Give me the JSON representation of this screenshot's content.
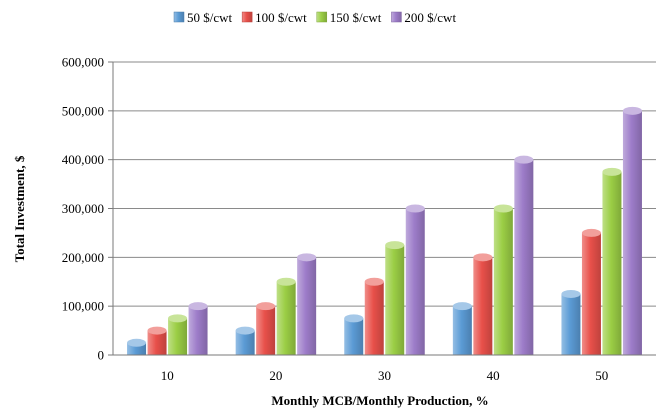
{
  "chart_data": {
    "type": "bar",
    "title": "",
    "xlabel": "Monthly MCB/Monthly Production, %",
    "ylabel": "Total Investment, $",
    "categories": [
      "10",
      "20",
      "30",
      "40",
      "50"
    ],
    "y_ticks": [
      "0",
      "100,000",
      "200,000",
      "300,000",
      "400,000",
      "500,000",
      "600,000"
    ],
    "ylim": [
      0,
      600000
    ],
    "grid": true,
    "legend_position": "top",
    "series": [
      {
        "name": "50 $/cwt",
        "color": "#5b9bd5",
        "values": [
          25000,
          50000,
          75000,
          100000,
          125000
        ]
      },
      {
        "name": "100 $/cwt",
        "color": "#e8504a",
        "values": [
          50000,
          100000,
          150000,
          200000,
          250000
        ]
      },
      {
        "name": "150 $/cwt",
        "color": "#9bce45",
        "values": [
          75000,
          150000,
          225000,
          300000,
          375000
        ]
      },
      {
        "name": "200 $/cwt",
        "color": "#9d7cc9",
        "values": [
          100000,
          200000,
          300000,
          400000,
          500000
        ]
      }
    ]
  }
}
